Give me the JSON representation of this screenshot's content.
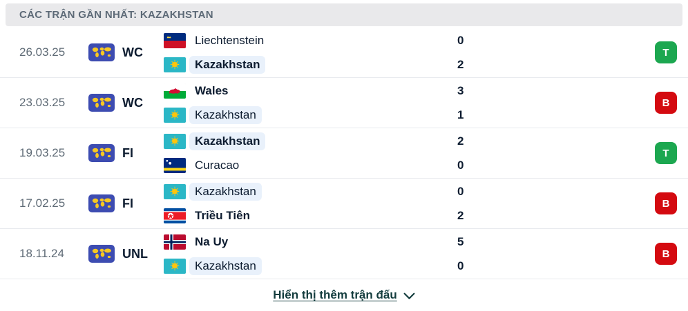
{
  "header": {
    "title": "CÁC TRẬN GẦN NHẤT: KAZAKHSTAN"
  },
  "matches": [
    {
      "date": "26.03.25",
      "competition": {
        "code": "WC",
        "icon": "world-map-icon"
      },
      "home": {
        "name": "Liechtenstein",
        "flag": "liechtenstein-flag",
        "score": "0",
        "winner": false,
        "highlighted": false
      },
      "away": {
        "name": "Kazakhstan",
        "flag": "kazakhstan-flag",
        "score": "2",
        "winner": true,
        "highlighted": true
      },
      "result": {
        "label": "T",
        "color": "#1ca750"
      }
    },
    {
      "date": "23.03.25",
      "competition": {
        "code": "WC",
        "icon": "world-map-icon"
      },
      "home": {
        "name": "Wales",
        "flag": "wales-flag",
        "score": "3",
        "winner": true,
        "highlighted": false
      },
      "away": {
        "name": "Kazakhstan",
        "flag": "kazakhstan-flag",
        "score": "1",
        "winner": false,
        "highlighted": true
      },
      "result": {
        "label": "B",
        "color": "#d40a10"
      }
    },
    {
      "date": "19.03.25",
      "competition": {
        "code": "FI",
        "icon": "world-map-icon"
      },
      "home": {
        "name": "Kazakhstan",
        "flag": "kazakhstan-flag",
        "score": "2",
        "winner": true,
        "highlighted": true
      },
      "away": {
        "name": "Curacao",
        "flag": "curacao-flag",
        "score": "0",
        "winner": false,
        "highlighted": false
      },
      "result": {
        "label": "T",
        "color": "#1ca750"
      }
    },
    {
      "date": "17.02.25",
      "competition": {
        "code": "FI",
        "icon": "world-map-icon"
      },
      "home": {
        "name": "Kazakhstan",
        "flag": "kazakhstan-flag",
        "score": "0",
        "winner": false,
        "highlighted": true
      },
      "away": {
        "name": "Triều Tiên",
        "flag": "north-korea-flag",
        "score": "2",
        "winner": true,
        "highlighted": false
      },
      "result": {
        "label": "B",
        "color": "#d40a10"
      }
    },
    {
      "date": "18.11.24",
      "competition": {
        "code": "UNL",
        "icon": "world-map-icon"
      },
      "home": {
        "name": "Na Uy",
        "flag": "norway-flag",
        "score": "5",
        "winner": true,
        "highlighted": false
      },
      "away": {
        "name": "Kazakhstan",
        "flag": "kazakhstan-flag",
        "score": "0",
        "winner": false,
        "highlighted": true
      },
      "result": {
        "label": "B",
        "color": "#d40a10"
      }
    }
  ],
  "footer": {
    "show_more_label": "Hiển thị thêm trận đấu",
    "chevron_icon": "chevron-down-icon"
  },
  "colors": {
    "win_badge": "#1ca750",
    "loss_badge": "#d40a10",
    "kazakhstan_highlight": "#e9f1fb",
    "header_bg": "#e9e9eb",
    "competition_icon_bg": "#3d4cb1",
    "link_color": "#143d3e"
  }
}
